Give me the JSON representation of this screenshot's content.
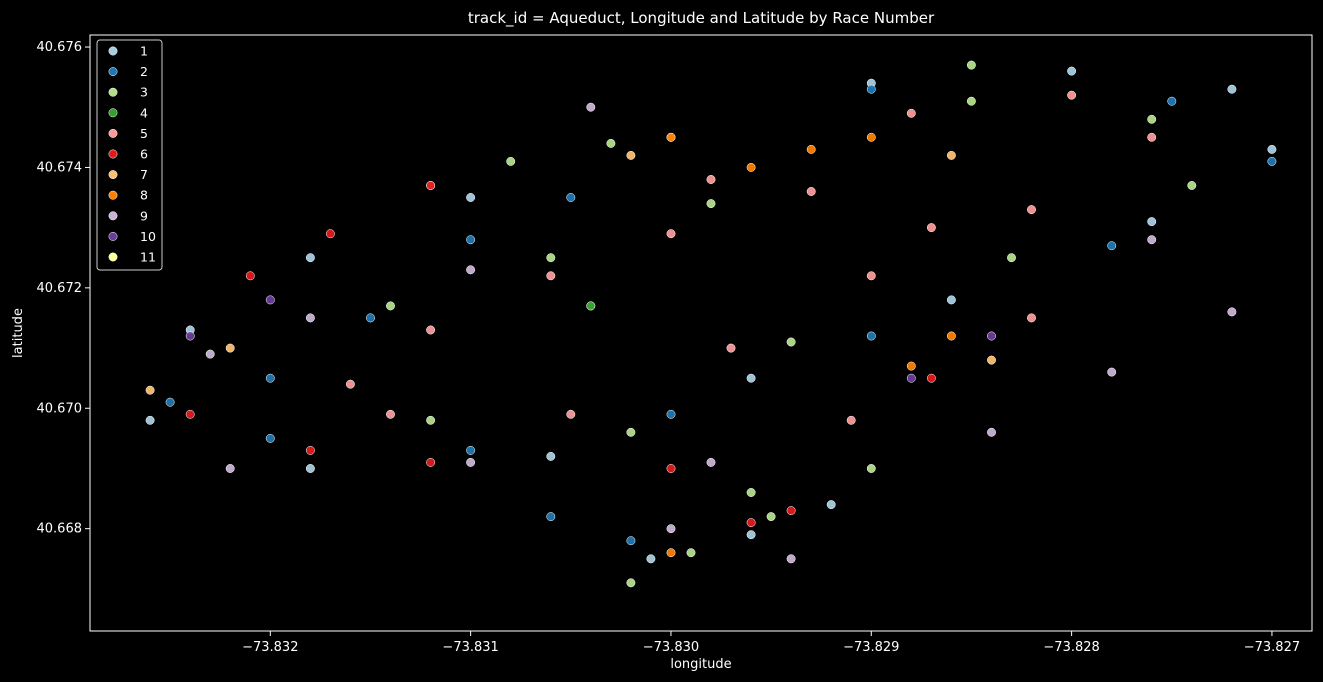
{
  "chart_data": {
    "type": "scatter",
    "title": "track_id = Aqueduct, Longitude and Latitude by Race Number",
    "xlabel": "longitude",
    "ylabel": "latitude",
    "xlim": [
      -73.8329,
      -73.8268
    ],
    "ylim": [
      40.6663,
      40.6762
    ],
    "xticks": [
      -73.832,
      -73.831,
      -73.83,
      -73.829,
      -73.828,
      -73.827
    ],
    "xtick_labels": [
      "−73.832",
      "−73.831",
      "−73.830",
      "−73.829",
      "−73.828",
      "−73.827"
    ],
    "yticks": [
      40.668,
      40.67,
      40.672,
      40.674,
      40.676
    ],
    "ytick_labels": [
      "40.668",
      "40.670",
      "40.672",
      "40.674",
      "40.676"
    ],
    "grid": false,
    "legend_position": "top-left",
    "colors": {
      "background": "#000000",
      "text": "#ffffff",
      "axes": "#ffffff"
    },
    "series": [
      {
        "name": "1",
        "color": "#a6cee3",
        "points": [
          [
            -73.8324,
            40.6713
          ],
          [
            -73.8318,
            40.6725
          ],
          [
            -73.831,
            40.6735
          ],
          [
            -73.83,
            40.6745
          ],
          [
            -73.829,
            40.6754
          ],
          [
            -73.828,
            40.6756
          ],
          [
            -73.8272,
            40.6753
          ],
          [
            -73.827,
            40.6743
          ],
          [
            -73.8276,
            40.6731
          ],
          [
            -73.8286,
            40.6718
          ],
          [
            -73.8296,
            40.6705
          ],
          [
            -73.8306,
            40.6692
          ],
          [
            -73.8318,
            40.669
          ],
          [
            -73.8326,
            40.6698
          ],
          [
            -73.8301,
            40.6675
          ],
          [
            -73.8296,
            40.6679
          ],
          [
            -73.8292,
            40.6684
          ]
        ]
      },
      {
        "name": "2",
        "color": "#1f78b4",
        "points": [
          [
            -73.8325,
            40.6701
          ],
          [
            -73.832,
            40.6705
          ],
          [
            -73.8315,
            40.6715
          ],
          [
            -73.831,
            40.6728
          ],
          [
            -73.8305,
            40.6735
          ],
          [
            -73.829,
            40.6753
          ],
          [
            -73.8275,
            40.6751
          ],
          [
            -73.827,
            40.6741
          ],
          [
            -73.8278,
            40.6727
          ],
          [
            -73.829,
            40.6712
          ],
          [
            -73.83,
            40.6699
          ],
          [
            -73.831,
            40.6693
          ],
          [
            -73.832,
            40.6695
          ],
          [
            -73.8306,
            40.6682
          ],
          [
            -73.8302,
            40.6678
          ]
        ]
      },
      {
        "name": "3",
        "color": "#b2df8a",
        "points": [
          [
            -73.8312,
            40.6737
          ],
          [
            -73.8308,
            40.6741
          ],
          [
            -73.8303,
            40.6744
          ],
          [
            -73.8314,
            40.6717
          ],
          [
            -73.8306,
            40.6725
          ],
          [
            -73.8298,
            40.6734
          ],
          [
            -73.8285,
            40.6751
          ],
          [
            -73.8276,
            40.6748
          ],
          [
            -73.8274,
            40.6737
          ],
          [
            -73.8283,
            40.6725
          ],
          [
            -73.8294,
            40.6711
          ],
          [
            -73.8302,
            40.6696
          ],
          [
            -73.8312,
            40.6698
          ],
          [
            -73.8304,
            40.6717
          ],
          [
            -73.8302,
            40.6671
          ],
          [
            -73.8299,
            40.6676
          ],
          [
            -73.8295,
            40.6682
          ],
          [
            -73.829,
            40.669
          ],
          [
            -73.8285,
            40.6757
          ],
          [
            -73.8296,
            40.6686
          ]
        ]
      },
      {
        "name": "4",
        "color": "#33a02c",
        "points": [
          [
            -73.8304,
            40.6717
          ]
        ]
      },
      {
        "name": "5",
        "color": "#fb9a99",
        "points": [
          [
            -73.8316,
            40.6704
          ],
          [
            -73.8312,
            40.6713
          ],
          [
            -73.8306,
            40.6722
          ],
          [
            -73.8298,
            40.6738
          ],
          [
            -73.8288,
            40.6749
          ],
          [
            -73.828,
            40.6752
          ],
          [
            -73.8276,
            40.6745
          ],
          [
            -73.8282,
            40.6733
          ],
          [
            -73.829,
            40.6722
          ],
          [
            -73.8297,
            40.671
          ],
          [
            -73.8305,
            40.6699
          ],
          [
            -73.8314,
            40.6699
          ],
          [
            -73.83,
            40.6729
          ],
          [
            -73.8293,
            40.6736
          ],
          [
            -73.8287,
            40.673
          ],
          [
            -73.8282,
            40.6715
          ],
          [
            -73.8291,
            40.6698
          ]
        ]
      },
      {
        "name": "6",
        "color": "#e31a1c",
        "points": [
          [
            -73.8324,
            40.6699
          ],
          [
            -73.8318,
            40.6693
          ],
          [
            -73.8312,
            40.6691
          ],
          [
            -73.8321,
            40.6722
          ],
          [
            -73.8317,
            40.6729
          ],
          [
            -73.8312,
            40.6737
          ],
          [
            -73.83,
            40.669
          ],
          [
            -73.8296,
            40.6681
          ],
          [
            -73.8294,
            40.6683
          ],
          [
            -73.8287,
            40.6705
          ]
        ]
      },
      {
        "name": "7",
        "color": "#fdbf6f",
        "points": [
          [
            -73.8326,
            40.6703
          ],
          [
            -73.8322,
            40.671
          ],
          [
            -73.8302,
            40.6742
          ],
          [
            -73.8286,
            40.6742
          ],
          [
            -73.8284,
            40.6708
          ]
        ]
      },
      {
        "name": "8",
        "color": "#ff7f00",
        "points": [
          [
            -73.8296,
            40.674
          ],
          [
            -73.8293,
            40.6743
          ],
          [
            -73.829,
            40.6745
          ],
          [
            -73.83,
            40.6745
          ],
          [
            -73.8286,
            40.6712
          ],
          [
            -73.8288,
            40.6707
          ],
          [
            -73.83,
            40.6676
          ]
        ]
      },
      {
        "name": "9",
        "color": "#cab2d6",
        "points": [
          [
            -73.8323,
            40.6709
          ],
          [
            -73.8318,
            40.6715
          ],
          [
            -73.831,
            40.6723
          ],
          [
            -73.8304,
            40.675
          ],
          [
            -73.8322,
            40.669
          ],
          [
            -73.831,
            40.6691
          ],
          [
            -73.8298,
            40.6691
          ],
          [
            -73.8284,
            40.6696
          ],
          [
            -73.8278,
            40.6706
          ],
          [
            -73.8272,
            40.6716
          ],
          [
            -73.8276,
            40.6728
          ],
          [
            -73.83,
            40.668
          ],
          [
            -73.8294,
            40.6675
          ]
        ]
      },
      {
        "name": "10",
        "color": "#6a3d9a",
        "points": [
          [
            -73.8324,
            40.6712
          ],
          [
            -73.832,
            40.6718
          ],
          [
            -73.8288,
            40.6705
          ],
          [
            -73.8284,
            40.6712
          ]
        ]
      },
      {
        "name": "11",
        "color": "#ffff99",
        "points": []
      }
    ]
  }
}
